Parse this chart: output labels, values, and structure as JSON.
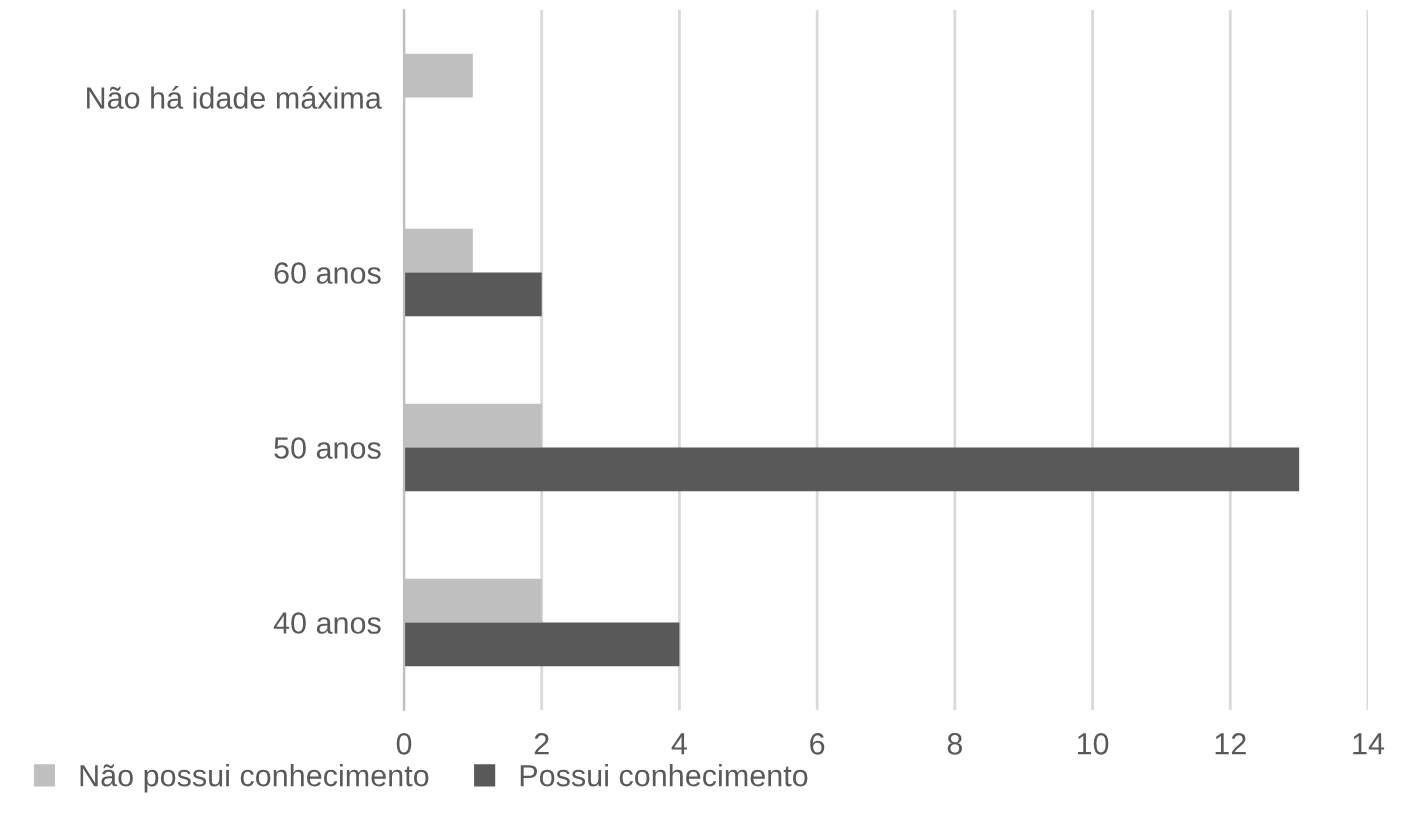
{
  "chart_data": {
    "type": "bar",
    "orientation": "horizontal",
    "categories": [
      "Não há idade máxima",
      "60 anos",
      "50 anos",
      "40 anos"
    ],
    "series": [
      {
        "name": "Não possui conhecimento",
        "color": "#bfbfbf",
        "values": [
          1,
          1,
          2,
          2
        ]
      },
      {
        "name": "Possui conhecimento",
        "color": "#595959",
        "values": [
          null,
          2,
          13,
          4
        ]
      }
    ],
    "xlim": [
      0,
      14
    ],
    "xticks": [
      0,
      2,
      4,
      6,
      8,
      10,
      12,
      14
    ],
    "grid": "x",
    "legend": "bottom"
  }
}
